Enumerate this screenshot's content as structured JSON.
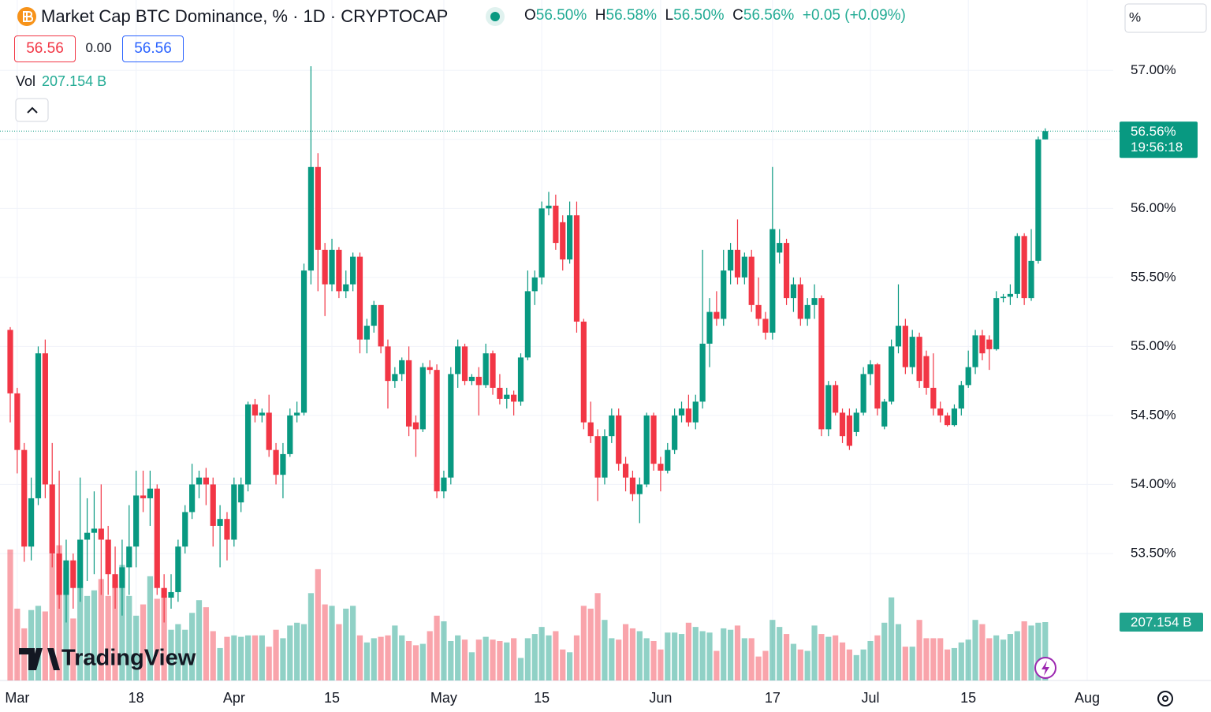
{
  "header": {
    "title": "Market Cap BTC Dominance, % · 1D · CRYPTOCAP",
    "o_label": "O",
    "o_value": "56.50%",
    "h_label": "H",
    "h_value": "56.58%",
    "l_label": "L",
    "l_value": "56.50%",
    "c_label": "C",
    "c_value": "56.56%",
    "change": "+0.05 (+0.09%)",
    "bid": "56.56",
    "spread": "0.00",
    "ask": "56.56",
    "vol_label": "Vol",
    "vol_value": "207.154 B",
    "scale_mode": "%",
    "logo": "TradingView"
  },
  "chart_data": {
    "type": "candlestick",
    "categories": [
      "Feb 29",
      "Mar 1",
      "Mar 2",
      "Mar 3",
      "Mar 4",
      "Mar 5",
      "Mar 6",
      "Mar 7",
      "Mar 8",
      "Mar 9",
      "Mar 10",
      "Mar 11",
      "Mar 12",
      "Mar 13",
      "Mar 14",
      "Mar 15",
      "Mar 16",
      "Mar 17",
      "Mar 18",
      "Mar 19",
      "Mar 20",
      "Mar 21",
      "Mar 22",
      "Mar 23",
      "Mar 24",
      "Mar 25",
      "Mar 26",
      "Mar 27",
      "Mar 28",
      "Mar 29",
      "Mar 30",
      "Mar 31",
      "Apr 1",
      "Apr 2",
      "Apr 3",
      "Apr 4",
      "Apr 5",
      "Apr 6",
      "Apr 7",
      "Apr 8",
      "Apr 9",
      "Apr 10",
      "Apr 11",
      "Apr 12",
      "Apr 13",
      "Apr 14",
      "Apr 15",
      "Apr 16",
      "Apr 17",
      "Apr 18",
      "Apr 19",
      "Apr 20",
      "Apr 21",
      "Apr 22",
      "Apr 23",
      "Apr 24",
      "Apr 25",
      "Apr 26",
      "Apr 27",
      "Apr 28",
      "Apr 29",
      "Apr 30",
      "May 1",
      "May 2",
      "May 3",
      "May 4",
      "May 5",
      "May 6",
      "May 7",
      "May 8",
      "May 9",
      "May 10",
      "May 11",
      "May 12",
      "May 13",
      "May 14",
      "May 15",
      "May 16",
      "May 17",
      "May 18",
      "May 19",
      "May 20",
      "May 21",
      "May 22",
      "May 23",
      "May 24",
      "May 25",
      "May 26",
      "May 27",
      "May 28",
      "May 29",
      "May 30",
      "May 31",
      "Jun 1",
      "Jun 2",
      "Jun 3",
      "Jun 4",
      "Jun 5",
      "Jun 6",
      "Jun 7",
      "Jun 8",
      "Jun 9",
      "Jun 10",
      "Jun 11",
      "Jun 12",
      "Jun 13",
      "Jun 14",
      "Jun 15",
      "Jun 16",
      "Jun 17",
      "Jun 18",
      "Jun 19",
      "Jun 20",
      "Jun 21",
      "Jun 22",
      "Jun 23",
      "Jun 24",
      "Jun 25",
      "Jun 26",
      "Jun 27",
      "Jun 28",
      "Jun 29",
      "Jun 30",
      "Jul 1",
      "Jul 2",
      "Jul 3",
      "Jul 4",
      "Jul 5",
      "Jul 6",
      "Jul 7",
      "Jul 8",
      "Jul 9",
      "Jul 10",
      "Jul 11",
      "Jul 12",
      "Jul 13",
      "Jul 14",
      "Jul 15",
      "Jul 16",
      "Jul 17",
      "Jul 18",
      "Jul 19",
      "Jul 20",
      "Jul 21",
      "Jul 22",
      "Jul 23",
      "Jul 24",
      "Jul 25",
      "Jul 26"
    ],
    "open": [
      55.12,
      54.66,
      54.25,
      53.55,
      53.9,
      54.95,
      54.0,
      53.5,
      53.2,
      53.45,
      53.25,
      53.6,
      53.65,
      53.68,
      53.6,
      53.35,
      53.25,
      53.4,
      53.55,
      53.92,
      53.9,
      53.97,
      53.25,
      53.18,
      53.22,
      53.55,
      53.8,
      54.0,
      54.05,
      54.0,
      53.7,
      53.75,
      53.6,
      53.87,
      54.0,
      54.58,
      54.5,
      54.52,
      54.25,
      54.07,
      54.22,
      54.5,
      54.52,
      55.55,
      56.3,
      55.7,
      55.45,
      55.7,
      55.4,
      55.45,
      55.65,
      55.05,
      55.15,
      55.3,
      55.0,
      54.75,
      54.8,
      54.9,
      54.45,
      54.4,
      54.85,
      54.83,
      53.95,
      54.05,
      54.8,
      55.0,
      54.75,
      54.78,
      54.72,
      54.95,
      54.7,
      54.62,
      54.65,
      54.6,
      54.92,
      55.4,
      55.5,
      56.0,
      56.02,
      55.9,
      55.63,
      55.95,
      55.18,
      54.45,
      54.35,
      54.05,
      54.35,
      54.5,
      54.15,
      54.05,
      53.93,
      54.0,
      54.5,
      54.15,
      54.1,
      54.25,
      54.5,
      54.55,
      54.45,
      54.6,
      55.02,
      55.25,
      55.2,
      55.55,
      55.7,
      55.5,
      55.65,
      55.3,
      55.2,
      55.1,
      55.68,
      55.75,
      55.35,
      55.45,
      55.2,
      55.3,
      55.35,
      54.4,
      54.72,
      54.52,
      54.5,
      54.38,
      54.52,
      54.8,
      54.87,
      54.42,
      54.6,
      55.0,
      55.15,
      54.85,
      55.07,
      54.93,
      54.7,
      54.55,
      54.5,
      54.43,
      54.55,
      54.72,
      54.85,
      55.08,
      55.05,
      54.98,
      55.35,
      55.36,
      55.38,
      55.8,
      55.35,
      55.62,
      56.5
    ],
    "high": [
      55.14,
      54.7,
      54.3,
      54.05,
      55.0,
      55.05,
      54.3,
      54.1,
      53.6,
      53.5,
      54.05,
      53.9,
      53.95,
      54.0,
      53.7,
      53.55,
      53.6,
      53.85,
      54.1,
      54.1,
      54.1,
      54.0,
      53.35,
      53.35,
      53.6,
      53.85,
      54.15,
      54.1,
      54.12,
      54.05,
      53.85,
      53.8,
      54.05,
      54.05,
      54.6,
      54.62,
      54.55,
      54.65,
      54.3,
      54.3,
      54.55,
      54.6,
      55.6,
      57.03,
      56.4,
      55.75,
      55.78,
      55.72,
      55.55,
      55.68,
      55.68,
      55.2,
      55.33,
      55.3,
      55.05,
      54.85,
      54.92,
      55.0,
      54.5,
      54.88,
      54.9,
      54.87,
      54.1,
      54.85,
      55.05,
      55.02,
      54.8,
      54.85,
      55.02,
      54.97,
      54.8,
      54.7,
      54.68,
      54.95,
      55.55,
      55.55,
      56.05,
      56.12,
      56.1,
      55.95,
      56.05,
      56.05,
      55.2,
      54.6,
      54.4,
      54.4,
      54.55,
      54.55,
      54.2,
      54.1,
      54.05,
      54.52,
      54.52,
      54.2,
      54.3,
      54.55,
      54.6,
      54.65,
      54.65,
      55.7,
      55.35,
      55.4,
      55.7,
      55.75,
      55.92,
      55.68,
      55.7,
      55.5,
      55.25,
      56.3,
      55.85,
      55.78,
      55.5,
      55.5,
      55.35,
      55.45,
      55.37,
      54.75,
      54.75,
      54.55,
      54.55,
      54.55,
      54.85,
      54.9,
      54.88,
      54.62,
      55.05,
      55.45,
      55.2,
      55.12,
      55.1,
      54.97,
      54.95,
      54.6,
      54.52,
      54.58,
      54.75,
      54.97,
      55.12,
      55.12,
      55.08,
      55.4,
      55.38,
      55.45,
      55.82,
      55.82,
      55.85,
      56.52,
      56.58
    ],
    "low": [
      54.45,
      54.08,
      53.44,
      53.45,
      53.85,
      53.9,
      53.4,
      53.1,
      53.0,
      53.1,
      53.15,
      53.3,
      53.35,
      53.2,
      53.2,
      53.1,
      53.05,
      53.2,
      53.4,
      53.8,
      53.7,
      53.2,
      53.0,
      53.1,
      53.15,
      53.5,
      53.75,
      53.9,
      53.85,
      53.55,
      53.4,
      53.45,
      53.55,
      53.8,
      53.95,
      54.45,
      54.45,
      54.2,
      54.0,
      53.9,
      54.2,
      54.45,
      54.5,
      55.45,
      55.4,
      55.22,
      55.4,
      55.35,
      55.35,
      55.4,
      54.95,
      54.95,
      55.1,
      54.95,
      54.55,
      54.7,
      54.75,
      54.35,
      54.2,
      54.38,
      54.8,
      53.9,
      53.9,
      54.0,
      54.7,
      54.72,
      54.72,
      54.5,
      54.7,
      54.65,
      54.58,
      54.55,
      54.5,
      54.57,
      54.9,
      55.3,
      55.45,
      55.95,
      55.7,
      55.55,
      55.6,
      55.1,
      54.4,
      54.3,
      53.88,
      54.0,
      54.3,
      54.1,
      53.95,
      53.88,
      53.72,
      53.98,
      54.1,
      53.95,
      54.08,
      54.22,
      54.45,
      54.42,
      54.4,
      54.55,
      54.85,
      55.15,
      55.15,
      55.45,
      55.45,
      55.45,
      55.25,
      55.15,
      55.05,
      55.05,
      55.6,
      55.3,
      55.25,
      55.15,
      55.15,
      55.2,
      54.35,
      54.35,
      54.5,
      54.3,
      54.25,
      54.35,
      54.5,
      54.72,
      54.5,
      54.4,
      54.58,
      54.95,
      54.8,
      54.8,
      54.7,
      54.65,
      54.5,
      54.45,
      54.42,
      54.42,
      54.5,
      54.7,
      54.8,
      54.9,
      54.83,
      54.97,
      55.32,
      55.3,
      55.35,
      55.3,
      55.33,
      55.6,
      56.5
    ],
    "close": [
      54.66,
      54.25,
      53.55,
      53.9,
      54.95,
      54.0,
      53.5,
      53.2,
      53.45,
      53.25,
      53.6,
      53.65,
      53.68,
      53.6,
      53.35,
      53.25,
      53.4,
      53.55,
      53.92,
      53.9,
      53.97,
      53.25,
      53.18,
      53.22,
      53.55,
      53.8,
      54.0,
      54.05,
      54.0,
      53.7,
      53.75,
      53.6,
      54.0,
      54.0,
      54.58,
      54.5,
      54.52,
      54.25,
      54.07,
      54.22,
      54.5,
      54.52,
      55.55,
      56.3,
      55.7,
      55.45,
      55.7,
      55.4,
      55.45,
      55.65,
      55.05,
      55.15,
      55.3,
      55.0,
      54.75,
      54.8,
      54.9,
      54.42,
      54.4,
      54.85,
      54.83,
      53.95,
      54.05,
      54.8,
      55.0,
      54.75,
      54.78,
      54.72,
      54.95,
      54.7,
      54.62,
      54.65,
      54.6,
      54.92,
      55.4,
      55.5,
      56.0,
      56.02,
      55.75,
      55.63,
      55.95,
      55.18,
      54.45,
      54.35,
      54.05,
      54.35,
      54.5,
      54.15,
      54.05,
      53.93,
      54.0,
      54.5,
      54.15,
      54.1,
      54.25,
      54.5,
      54.55,
      54.45,
      54.6,
      55.02,
      55.25,
      55.2,
      55.55,
      55.7,
      55.5,
      55.65,
      55.3,
      55.2,
      55.1,
      55.85,
      55.75,
      55.35,
      55.45,
      55.2,
      55.3,
      55.35,
      54.4,
      54.72,
      54.52,
      54.35,
      54.28,
      54.52,
      54.8,
      54.87,
      54.55,
      54.6,
      55.0,
      55.15,
      54.85,
      55.07,
      54.75,
      54.7,
      54.55,
      54.5,
      54.43,
      54.55,
      54.72,
      54.85,
      55.08,
      54.95,
      54.98,
      55.35,
      55.36,
      55.38,
      55.8,
      55.35,
      55.62,
      56.5,
      56.56
    ],
    "volume": [
      465,
      255,
      185,
      250,
      265,
      245,
      450,
      480,
      400,
      220,
      330,
      300,
      320,
      360,
      300,
      340,
      410,
      300,
      230,
      270,
      370,
      290,
      300,
      180,
      200,
      180,
      240,
      285,
      260,
      175,
      115,
      155,
      160,
      155,
      160,
      160,
      160,
      120,
      180,
      150,
      195,
      205,
      200,
      310,
      395,
      270,
      265,
      200,
      255,
      265,
      160,
      135,
      150,
      155,
      160,
      195,
      160,
      140,
      125,
      130,
      175,
      230,
      210,
      140,
      160,
      145,
      100,
      145,
      155,
      145,
      140,
      135,
      150,
      80,
      150,
      165,
      190,
      160,
      175,
      110,
      100,
      160,
      265,
      255,
      310,
      215,
      150,
      145,
      200,
      185,
      175,
      150,
      140,
      110,
      170,
      170,
      165,
      205,
      190,
      175,
      170,
      105,
      185,
      180,
      195,
      150,
      150,
      85,
      105,
      215,
      190,
      165,
      130,
      110,
      105,
      195,
      165,
      155,
      160,
      135,
      110,
      90,
      110,
      140,
      160,
      205,
      295,
      200,
      120,
      120,
      215,
      150,
      150,
      150,
      110,
      115,
      135,
      145,
      215,
      200,
      150,
      160,
      145,
      165,
      175,
      210,
      195,
      205,
      207.154
    ],
    "up_color": "#089981",
    "down_color": "#f23645",
    "ylim": [
      52.58,
      57.51
    ],
    "yticks": [
      {
        "value": 53.5,
        "label": "53.50%"
      },
      {
        "value": 54,
        "label": "54.00%"
      },
      {
        "value": 54.5,
        "label": "54.50%"
      },
      {
        "value": 55,
        "label": "55.00%"
      },
      {
        "value": 55.5,
        "label": "55.50%"
      },
      {
        "value": 56,
        "label": "56.00%"
      },
      {
        "value": 56.5,
        "label": "56.50%"
      },
      {
        "value": 57,
        "label": "57.00%"
      }
    ],
    "y2lim": [
      0,
      2416
    ],
    "xticks": [
      {
        "value": "Mar 1",
        "label": "Mar"
      },
      {
        "value": "Mar 18",
        "label": "18"
      },
      {
        "value": "Apr 1",
        "label": "Apr"
      },
      {
        "value": "Apr 15",
        "label": "15"
      },
      {
        "value": "May 1",
        "label": "May"
      },
      {
        "value": "May 15",
        "label": "15"
      },
      {
        "value": "Jun 1",
        "label": "Jun"
      },
      {
        "value": "Jun 17",
        "label": "17"
      },
      {
        "value": "Jul 1",
        "label": "Jul"
      },
      {
        "value": "Jul 15",
        "label": "15"
      },
      {
        "value": "Aug 1",
        "label": "Aug"
      }
    ],
    "grid": true,
    "last_price_label": "56.56%",
    "countdown": "19:56:18",
    "last_volume_label": "207.154 B"
  }
}
